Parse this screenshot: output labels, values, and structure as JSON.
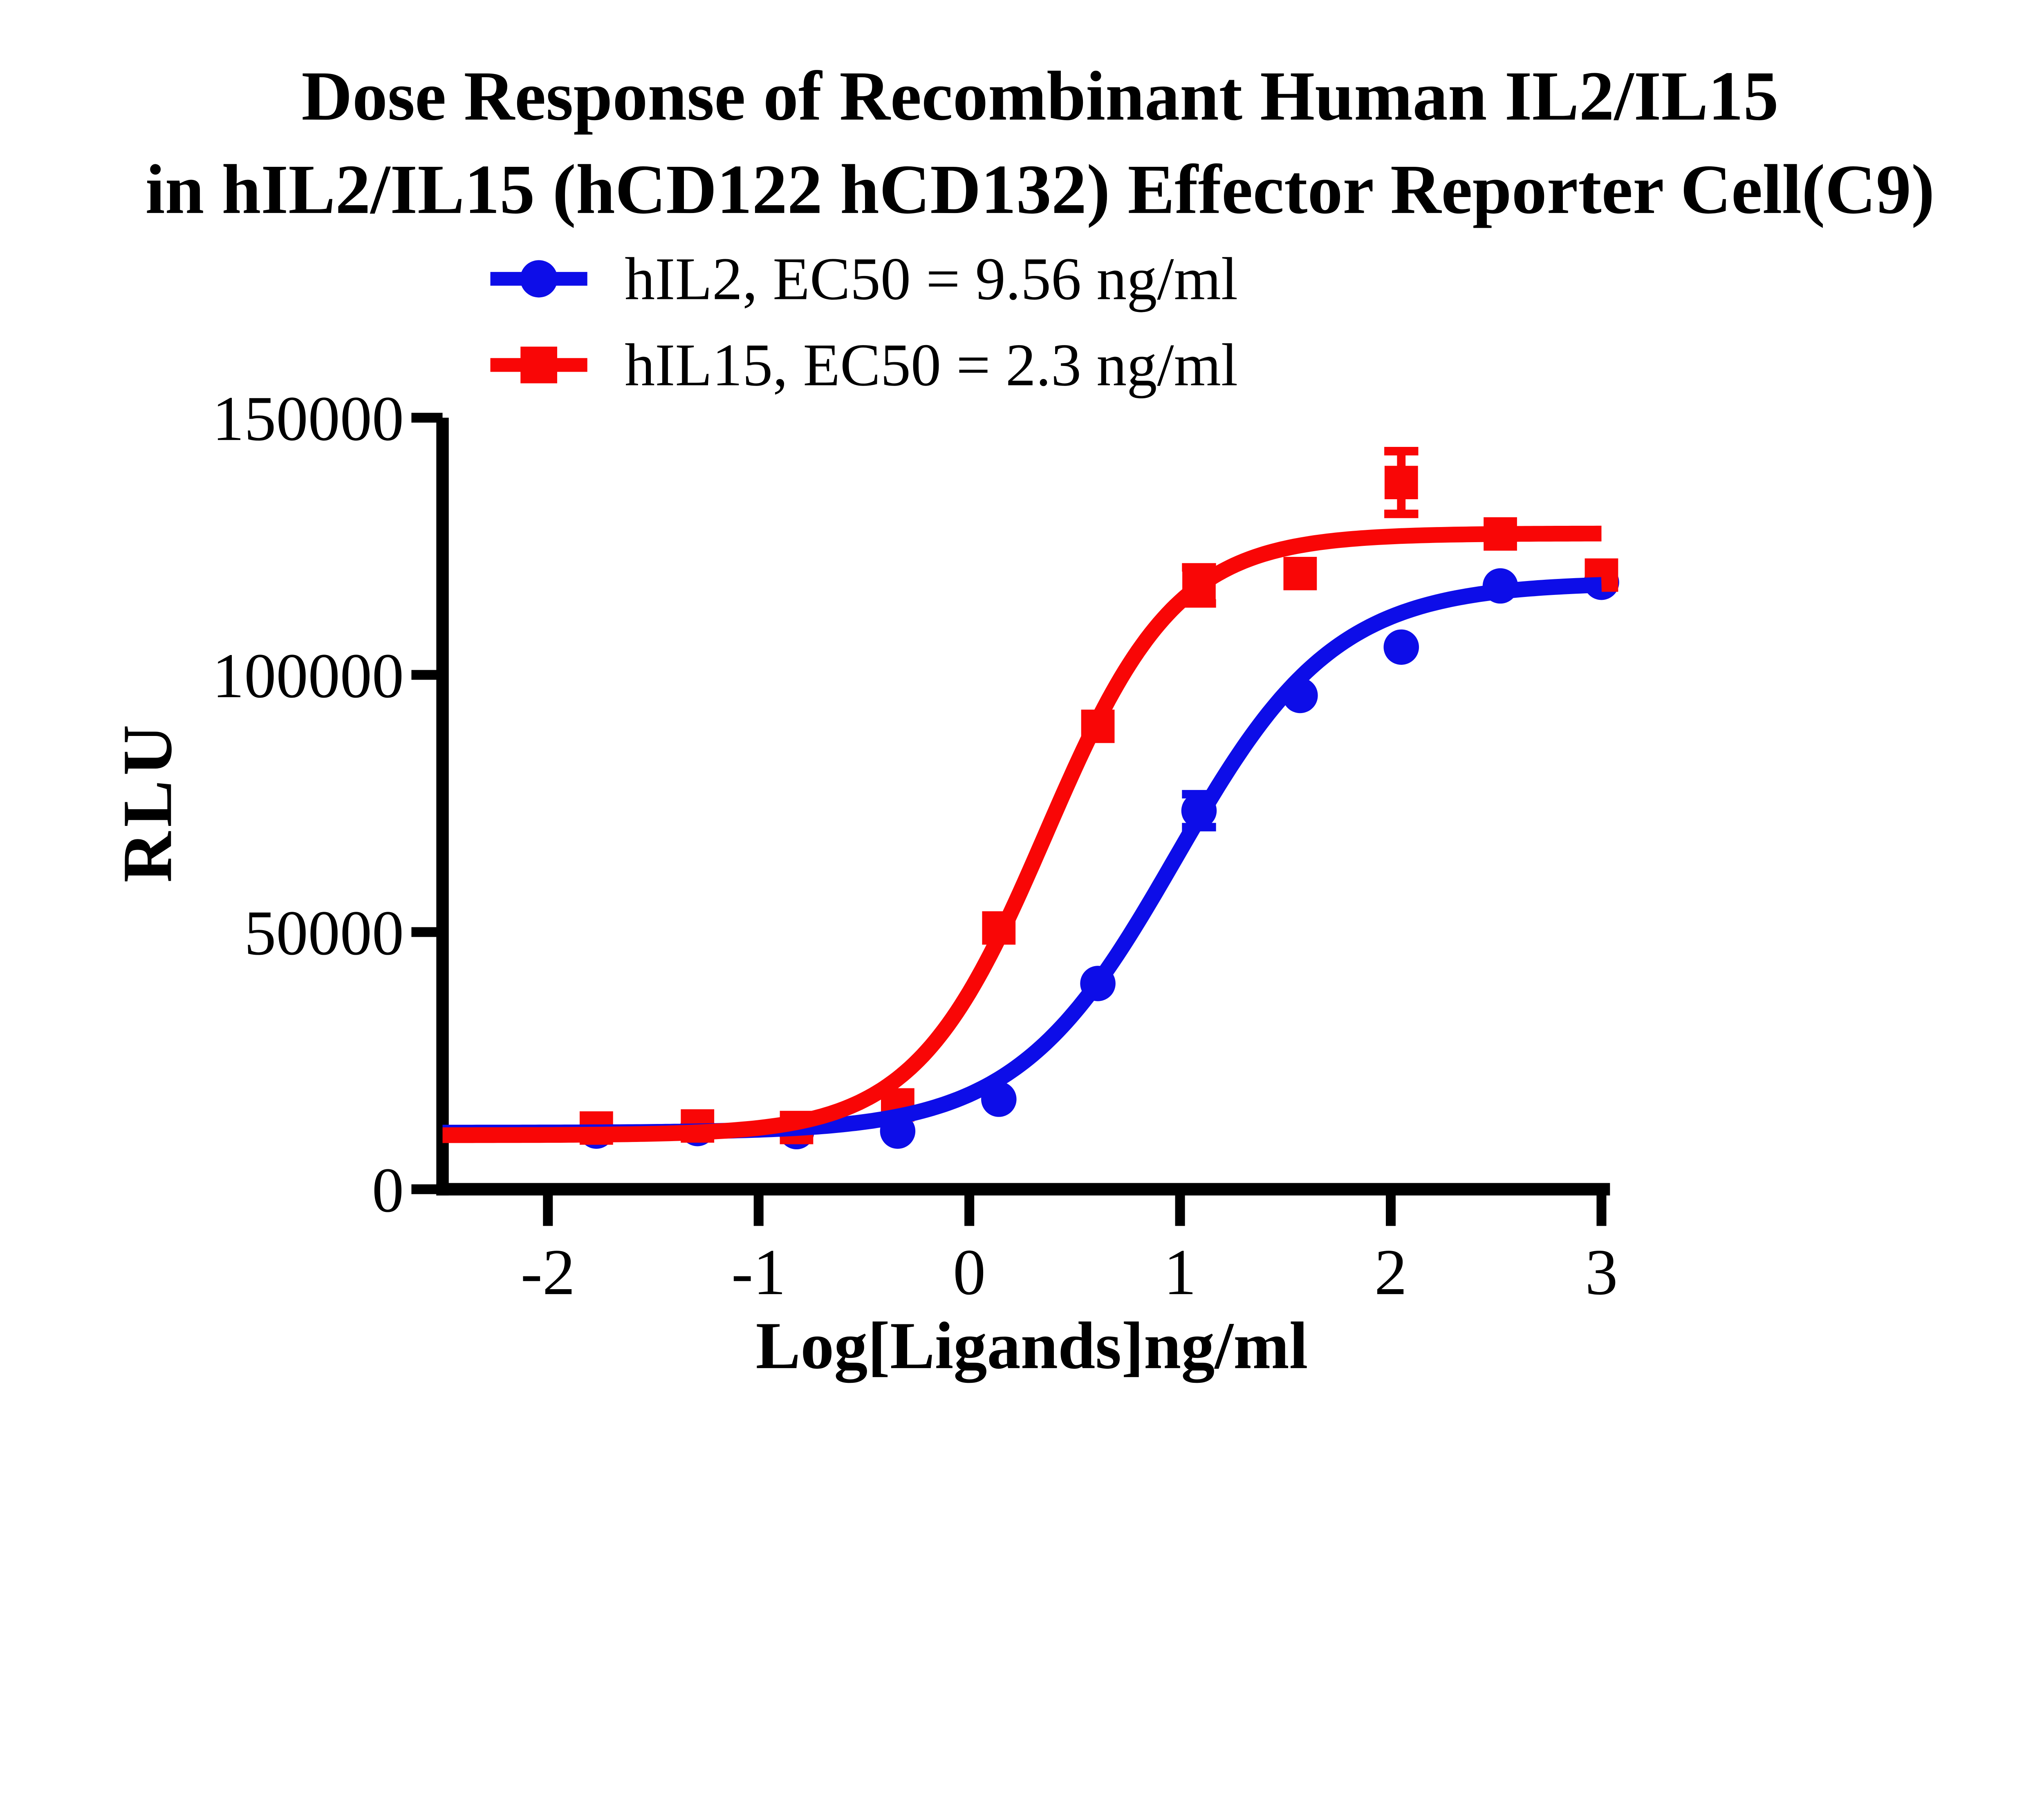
{
  "title": {
    "line1": "Dose Response of Recombinant Human IL2/IL15",
    "line2": "in hIL2/IL15 (hCD122 hCD132) Effector Reporter Cell(C9)"
  },
  "legend": {
    "items": [
      {
        "series": "hIL2",
        "label": "hIL2, EC50 = 9.56 ng/ml",
        "marker": "circle",
        "color": "#0D0DE8"
      },
      {
        "series": "hIL15",
        "label": "hIL15, EC50 = 2.3 ng/ml",
        "marker": "square",
        "color": "#F90606"
      }
    ]
  },
  "axes": {
    "x": {
      "title": "Log[Ligands]ng/ml",
      "min": -2.5,
      "max": 3,
      "ticks": [
        -2,
        -1,
        0,
        1,
        2,
        3
      ],
      "tick_labels": [
        "-2",
        "-1",
        "0",
        "1",
        "2",
        "3"
      ]
    },
    "y": {
      "title": "RLU",
      "min": 0,
      "max": 150000,
      "ticks": [
        0,
        50000,
        100000,
        150000
      ],
      "tick_labels": [
        "0",
        "50000",
        "100000",
        "150000"
      ]
    }
  },
  "chart_data": {
    "type": "scatter",
    "subtype": "dose-response with 4PL fit curves and error bars",
    "title": "Dose Response of Recombinant Human IL2/IL15 in hIL2/IL15 (hCD122 hCD132) Effector Reporter Cell(C9)",
    "xlabel": "Log[Ligands]ng/ml",
    "ylabel": "RLU",
    "xlim": [
      -2.5,
      3
    ],
    "ylim": [
      0,
      150000
    ],
    "x_ticks": [
      -2,
      -1,
      0,
      1,
      2,
      3
    ],
    "y_ticks": [
      0,
      50000,
      100000,
      150000
    ],
    "grid": false,
    "legend_position": "top-center above plot",
    "x": [
      -1.77,
      -1.29,
      -0.82,
      -0.34,
      0.14,
      0.61,
      1.09,
      1.57,
      2.05,
      2.52,
      3.0
    ],
    "series": [
      {
        "name": "hIL2",
        "legend_label": "hIL2, EC50 = 9.56 ng/ml",
        "ec50_ng_ml": 9.56,
        "color": "#0D0DE8",
        "marker": "circle",
        "values": [
          11300,
          11800,
          11200,
          11300,
          17500,
          40000,
          73600,
          96000,
          105400,
          117300,
          118000
        ],
        "errors": [
          null,
          null,
          null,
          null,
          null,
          null,
          3200,
          null,
          null,
          null,
          null
        ],
        "fit": {
          "model": "4PL",
          "bottom": 11000,
          "top": 118000,
          "logEC50": 0.9805,
          "hill": 1.15
        }
      },
      {
        "name": "hIL15",
        "legend_label": "hIL15, EC50 = 2.3 ng/ml",
        "ec50_ng_ml": 2.3,
        "color": "#F90606",
        "marker": "square",
        "values": [
          11900,
          12300,
          12000,
          16400,
          50800,
          90000,
          117400,
          119700,
          137400,
          127400,
          119400
        ],
        "errors": [
          null,
          null,
          null,
          null,
          null,
          null,
          3500,
          null,
          6100,
          null,
          null
        ],
        "fit": {
          "model": "4PL",
          "bottom": 10500,
          "top": 127500,
          "logEC50": 0.362,
          "hill": 1.4
        }
      }
    ]
  }
}
